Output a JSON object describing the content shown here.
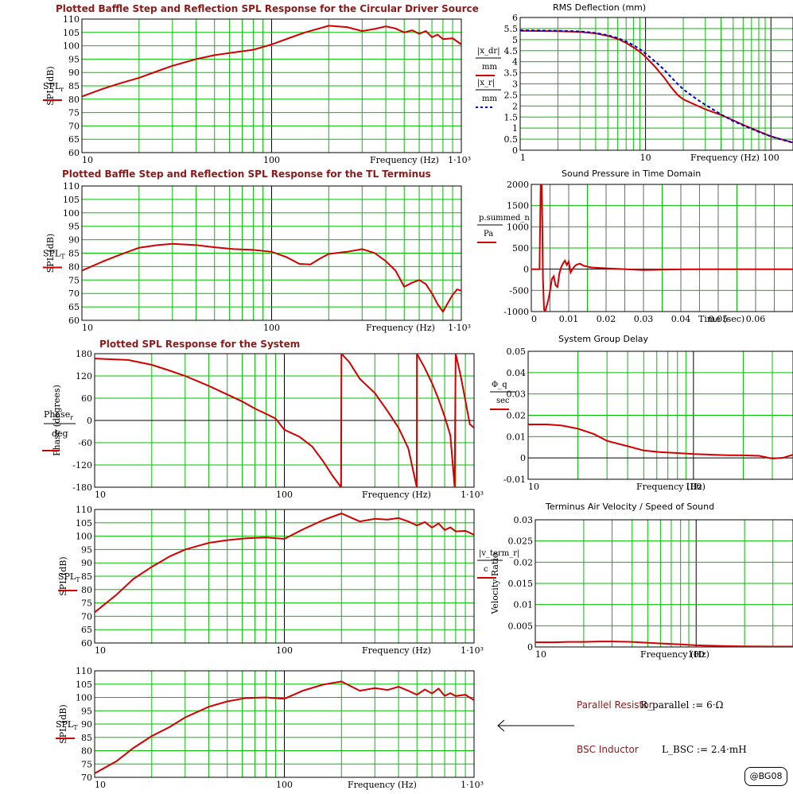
{
  "colors": {
    "grid": "#00c000",
    "curve": "#d40000",
    "curve2": "#0000cc",
    "title": "#8b1a1a",
    "axis": "#000000"
  },
  "annotations": {
    "parallel_label": "Parallel Resistor",
    "parallel_formula": "R_parallel := 6·Ω",
    "bsc_label": "BSC Inductor",
    "bsc_formula": "L_BSC := 2.4·mH",
    "arrow": "←",
    "badge": "@BG08"
  },
  "chart_data": [
    {
      "id": "spl-driver",
      "type": "line",
      "title": "Plotted Baffle Step and Reflection SPL Response for the Circular Driver Source",
      "xlabel": "Frequency (Hz)",
      "ylabel": "SPL (dB)",
      "legend_main": "SPL",
      "legend_sub": "r",
      "xscale": "log",
      "xlim": [
        10,
        1000
      ],
      "ylim": [
        60,
        110
      ],
      "xticks": [
        "10",
        "100",
        "1·10³"
      ],
      "yticks": [
        60,
        65,
        70,
        75,
        80,
        85,
        90,
        95,
        100,
        105,
        110
      ],
      "series": [
        {
          "color": "#d40000",
          "x": [
            10,
            13,
            16,
            20,
            25,
            30,
            40,
            50,
            63,
            80,
            100,
            125,
            150,
            200,
            250,
            300,
            350,
            400,
            450,
            500,
            550,
            600,
            650,
            700,
            750,
            800,
            900,
            1000
          ],
          "y": [
            81,
            84,
            86,
            88,
            90.5,
            92.5,
            95,
            96.5,
            97.5,
            98.5,
            100.5,
            103,
            105,
            107.5,
            107,
            105.5,
            106.3,
            107.3,
            106.5,
            105,
            105.8,
            104.5,
            105.5,
            103.2,
            104.2,
            102.5,
            102.8,
            100.5
          ]
        }
      ]
    },
    {
      "id": "spl-tl",
      "type": "line",
      "title": "Plotted Baffle Step and Reflection SPL Response for the TL Terminus",
      "xlabel": "Frequency (Hz)",
      "ylabel": "SPL (dB)",
      "legend_main": "SPL",
      "legend_sub": "T",
      "xscale": "log",
      "xlim": [
        10,
        1000
      ],
      "ylim": [
        60,
        110
      ],
      "xticks": [
        "10",
        "100",
        "1·10³"
      ],
      "yticks": [
        60,
        65,
        70,
        75,
        80,
        85,
        90,
        95,
        100,
        105,
        110
      ],
      "series": [
        {
          "color": "#d40000",
          "x": [
            10,
            13,
            16,
            20,
            25,
            30,
            40,
            50,
            63,
            80,
            100,
            120,
            140,
            160,
            180,
            200,
            250,
            300,
            350,
            400,
            450,
            500,
            550,
            600,
            650,
            700,
            750,
            800,
            850,
            900,
            950,
            1000
          ],
          "y": [
            78.5,
            82,
            84.5,
            87,
            88,
            88.5,
            88,
            87.2,
            86.5,
            86.2,
            85.5,
            83.5,
            81,
            80.8,
            83,
            84.7,
            85.5,
            86.5,
            85,
            82,
            78.5,
            72.5,
            74,
            75,
            73.5,
            70,
            66,
            63.2,
            66.5,
            69.5,
            71.5,
            71
          ]
        }
      ]
    },
    {
      "id": "phase",
      "type": "line",
      "title": "Plotted SPL Response for the System",
      "xlabel": "Frequency (Hz)",
      "ylabel": "Phase (degrees)",
      "legend_main": "Phase",
      "legend_sub": "r",
      "legend_den": "deg",
      "xscale": "log",
      "xlim": [
        10,
        1000
      ],
      "ylim": [
        -180,
        180
      ],
      "xticks": [
        "10",
        "100",
        "1·10³"
      ],
      "yticks": [
        -180,
        -120,
        -60,
        0,
        60,
        120,
        180
      ],
      "series": [
        {
          "color": "#d40000",
          "x": [
            10,
            15,
            20,
            25,
            30,
            40,
            50,
            60,
            70,
            80,
            90,
            100,
            120,
            140,
            160,
            180,
            199,
            200,
            220,
            250,
            300,
            350,
            400,
            450,
            499,
            500,
            550,
            600,
            650,
            700,
            750,
            790,
            800,
            850,
            900,
            950,
            1000
          ],
          "y": [
            167,
            163,
            150,
            134,
            120,
            93,
            70,
            51,
            32,
            18,
            5,
            -25,
            -44,
            -70,
            -110,
            -150,
            -180,
            180,
            157,
            112,
            74,
            25,
            -20,
            -75,
            -180,
            180,
            141,
            101,
            57,
            10,
            -40,
            -180,
            180,
            120,
            54,
            -10,
            -20
          ]
        }
      ]
    },
    {
      "id": "spl-system1",
      "type": "line",
      "xlabel": "Frequency (Hz)",
      "ylabel": "SPL (dB)",
      "legend_main": "SPL",
      "legend_sub": "T",
      "xscale": "log",
      "xlim": [
        10,
        1000
      ],
      "ylim": [
        60,
        110
      ],
      "xticks": [
        "10",
        "100",
        "1·10³"
      ],
      "yticks": [
        60,
        65,
        70,
        75,
        80,
        85,
        90,
        95,
        100,
        105,
        110
      ],
      "series": [
        {
          "color": "#d40000",
          "x": [
            10,
            13,
            16,
            20,
            25,
            30,
            40,
            50,
            63,
            80,
            100,
            125,
            160,
            200,
            250,
            300,
            350,
            400,
            450,
            500,
            550,
            600,
            650,
            700,
            750,
            800,
            900,
            1000
          ],
          "y": [
            71.5,
            78,
            84,
            88.5,
            92.5,
            95,
            97.5,
            98.5,
            99.2,
            99.5,
            99,
            102.5,
            106,
            108.5,
            105.5,
            106.5,
            106.2,
            106.8,
            105.5,
            104,
            105.3,
            103.2,
            104.8,
            102.3,
            103.3,
            101.8,
            102,
            100.5
          ]
        }
      ]
    },
    {
      "id": "spl-system2",
      "type": "line",
      "xlabel": "Frequency (Hz)",
      "ylabel": "SPL (dB)",
      "legend_main": "SPL",
      "legend_sub": "T",
      "xscale": "log",
      "xlim": [
        10,
        1000
      ],
      "ylim": [
        70,
        110
      ],
      "xticks": [
        "10",
        "100",
        "1·10³"
      ],
      "yticks": [
        70,
        75,
        80,
        85,
        90,
        95,
        100,
        105,
        110
      ],
      "series": [
        {
          "color": "#d40000",
          "x": [
            10,
            13,
            16,
            20,
            25,
            30,
            40,
            50,
            63,
            80,
            100,
            125,
            160,
            200,
            250,
            300,
            350,
            400,
            450,
            500,
            550,
            600,
            650,
            700,
            750,
            800,
            900,
            1000
          ],
          "y": [
            71.5,
            76,
            81,
            85.5,
            89,
            92.5,
            96.5,
            98.5,
            99.8,
            100,
            99.5,
            102.5,
            104.8,
            106,
            102.5,
            103.5,
            102.8,
            104,
            102.5,
            101,
            103,
            101.5,
            103.3,
            100.6,
            101.6,
            100.5,
            101,
            99
          ]
        }
      ]
    },
    {
      "id": "rms-deflection",
      "type": "line",
      "title": "RMS Deflection (mm)",
      "xlabel": "Frequency (Hz)",
      "legend": [
        {
          "num": "|x_dr|",
          "den": "mm",
          "style": "solid"
        },
        {
          "num": "|x_r|",
          "den": "mm",
          "style": "dotted"
        }
      ],
      "xscale": "log",
      "xlim": [
        1,
        150
      ],
      "ylim": [
        0,
        6
      ],
      "xticks": [
        "1",
        "10",
        "100"
      ],
      "yticks": [
        0,
        0.5,
        1,
        1.5,
        2,
        2.5,
        3,
        3.5,
        4,
        4.5,
        5,
        5.5,
        6
      ],
      "series": [
        {
          "color": "#d40000",
          "style": "solid",
          "x": [
            1,
            2,
            3,
            4,
            5,
            6,
            7,
            8,
            9,
            10,
            12,
            14,
            16,
            18,
            20,
            25,
            30,
            40,
            50,
            60,
            80,
            100,
            120,
            150
          ],
          "y": [
            5.4,
            5.38,
            5.35,
            5.28,
            5.17,
            5.03,
            4.85,
            4.65,
            4.45,
            4.22,
            3.75,
            3.3,
            2.85,
            2.5,
            2.3,
            2.05,
            1.85,
            1.6,
            1.35,
            1.15,
            0.85,
            0.63,
            0.5,
            0.35
          ]
        },
        {
          "color": "#0000cc",
          "style": "dotted",
          "x": [
            1,
            2,
            3,
            4,
            5,
            6,
            7,
            8,
            9,
            10,
            12,
            14,
            16,
            18,
            20,
            25,
            30,
            40,
            50,
            60,
            80,
            100,
            120,
            150
          ],
          "y": [
            5.42,
            5.4,
            5.37,
            5.3,
            5.2,
            5.07,
            4.92,
            4.75,
            4.57,
            4.37,
            4.0,
            3.65,
            3.3,
            3.0,
            2.75,
            2.35,
            2.05,
            1.62,
            1.32,
            1.12,
            0.83,
            0.62,
            0.49,
            0.34
          ]
        }
      ]
    },
    {
      "id": "pressure-time",
      "type": "line",
      "title": "Sound Pressure in Time Domain",
      "xlabel": "Time (sec)",
      "legend": [
        {
          "num": "p.summed_n",
          "den": "Pa",
          "style": "solid"
        }
      ],
      "xscale": "linear",
      "xlim": [
        0,
        0.07
      ],
      "ylim": [
        -1000,
        2000
      ],
      "xticks": [
        "0",
        "0.01",
        "0.02",
        "0.03",
        "0.04",
        "0.05",
        "0.06",
        "0"
      ],
      "yticks": [
        -1000,
        -500,
        0,
        500,
        1000,
        1500,
        2000
      ],
      "series": [
        {
          "color": "#d40000",
          "x": [
            0,
            0.0022,
            0.0025,
            0.0028,
            0.0031,
            0.0034,
            0.0037,
            0.004,
            0.0045,
            0.005,
            0.0055,
            0.006,
            0.0065,
            0.007,
            0.0075,
            0.008,
            0.0085,
            0.009,
            0.0095,
            0.01,
            0.0105,
            0.011,
            0.0115,
            0.012,
            0.013,
            0.014,
            0.016,
            0.02,
            0.03,
            0.04,
            0.05,
            0.06,
            0.07
          ],
          "y": [
            0,
            0,
            2000,
            2000,
            -200,
            -950,
            -1000,
            -900,
            -750,
            -520,
            -230,
            -170,
            -380,
            -420,
            -100,
            50,
            140,
            200,
            100,
            180,
            -80,
            0,
            60,
            100,
            130,
            80,
            40,
            20,
            -20,
            -5,
            0,
            0,
            0
          ]
        }
      ]
    },
    {
      "id": "group-delay",
      "type": "line",
      "title": "System Group Delay",
      "xlabel": "Frequency (Hz)",
      "legend": [
        {
          "num": "Φ_q",
          "den": "sec",
          "style": "solid"
        }
      ],
      "xscale": "log",
      "xlim": [
        10,
        400
      ],
      "ylim": [
        -0.01,
        0.05
      ],
      "xticks": [
        "10",
        "100"
      ],
      "yticks": [
        -0.01,
        0,
        0.01,
        0.02,
        0.03,
        0.04,
        0.05
      ],
      "series": [
        {
          "color": "#d40000",
          "x": [
            10,
            13,
            16,
            20,
            25,
            30,
            40,
            50,
            63,
            80,
            100,
            130,
            160,
            200,
            250,
            300,
            350,
            400
          ],
          "y": [
            0.0157,
            0.0157,
            0.0152,
            0.0137,
            0.0112,
            0.008,
            0.0055,
            0.0035,
            0.0027,
            0.0023,
            0.0018,
            0.0015,
            0.0013,
            0.0012,
            0.001,
            -0.0003,
            0.0001,
            0.0015
          ]
        }
      ]
    },
    {
      "id": "terminus-velocity",
      "type": "line",
      "title": "Terminus Air Velocity / Speed of Sound",
      "xlabel": "Frequency (Hz)",
      "ylabel": "Velocity Ratio",
      "legend": [
        {
          "num": "|v_term_r|",
          "den": "c",
          "style": "solid"
        }
      ],
      "xscale": "log",
      "xlim": [
        10,
        400
      ],
      "ylim": [
        0,
        0.03
      ],
      "xticks": [
        "10",
        "100"
      ],
      "yticks": [
        0,
        0.005,
        0.01,
        0.015,
        0.02,
        0.025,
        0.03
      ],
      "series": [
        {
          "color": "#d40000",
          "x": [
            10,
            13,
            16,
            20,
            25,
            30,
            40,
            50,
            63,
            80,
            100,
            150,
            200,
            300,
            400
          ],
          "y": [
            0.0011,
            0.0011,
            0.0012,
            0.0012,
            0.0013,
            0.0013,
            0.0012,
            0.001,
            0.0008,
            0.0006,
            0.0004,
            0.0002,
            0.00015,
            0.0001,
            0.0001
          ]
        }
      ]
    }
  ]
}
